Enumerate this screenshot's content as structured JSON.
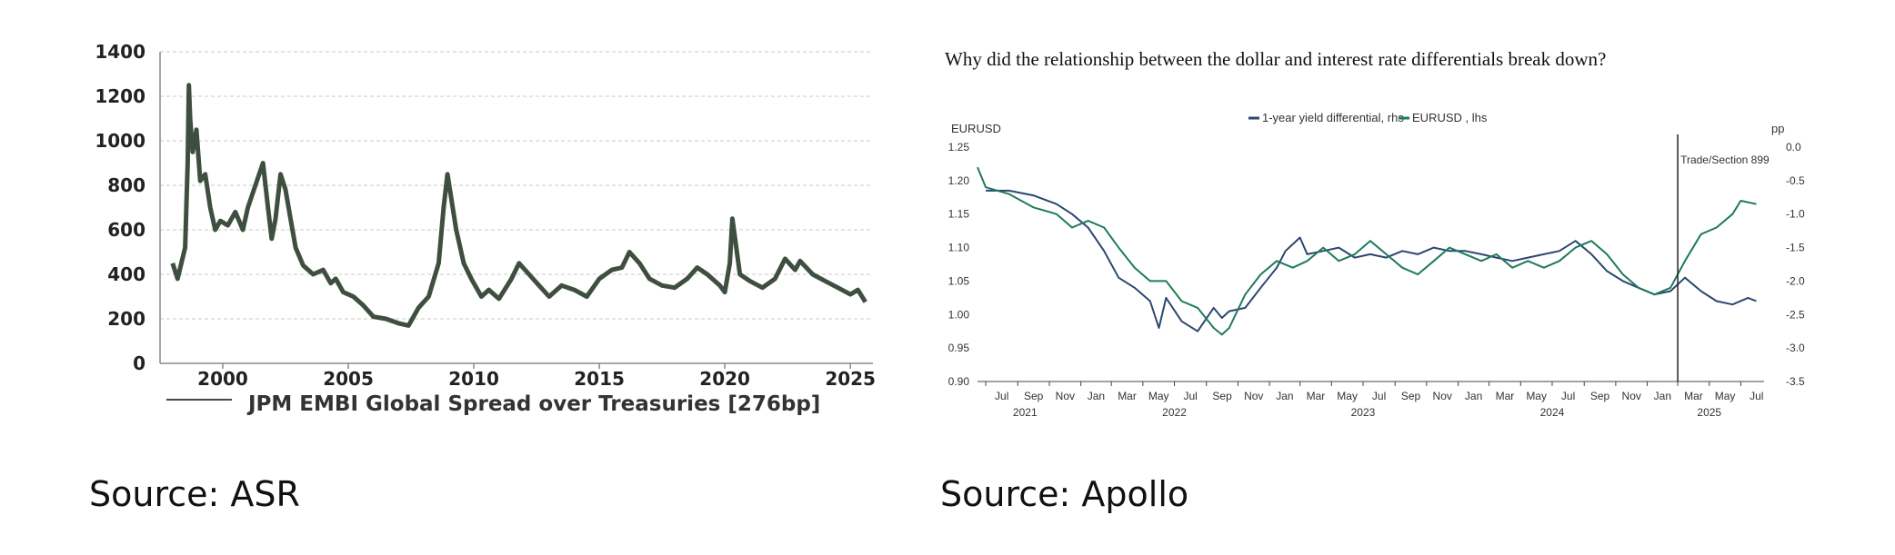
{
  "chart_data": [
    {
      "type": "line",
      "title": "",
      "xlabel": "",
      "ylabel": "",
      "xlim": [
        1997.5,
        2025.9
      ],
      "ylim": [
        0,
        1400
      ],
      "y_ticks": [
        "0",
        "200",
        "400",
        "600",
        "800",
        "1000",
        "1200",
        "1400"
      ],
      "x_ticks": [
        "2000",
        "2005",
        "2010",
        "2015",
        "2020",
        "2025"
      ],
      "grid": "horizontal dashed",
      "legend": "bottom",
      "colors": {
        "series": "#3f4f3f",
        "grid": "#c8c8c8"
      },
      "series": [
        {
          "name": "JPM EMBI Global Spread over Treasuries [276bp]",
          "x": [
            1998.0,
            1998.2,
            1998.5,
            1998.6,
            1998.65,
            1998.7,
            1998.8,
            1998.95,
            1999.1,
            1999.3,
            1999.5,
            1999.7,
            1999.9,
            2000.2,
            2000.5,
            2000.8,
            2001.0,
            2001.3,
            2001.6,
            2001.8,
            2001.95,
            2002.1,
            2002.3,
            2002.5,
            2002.7,
            2002.9,
            2003.2,
            2003.6,
            2004.0,
            2004.3,
            2004.5,
            2004.8,
            2005.2,
            2005.6,
            2006.0,
            2006.5,
            2007.0,
            2007.4,
            2007.8,
            2008.2,
            2008.6,
            2008.8,
            2008.95,
            2009.3,
            2009.6,
            2009.9,
            2010.3,
            2010.6,
            2011.0,
            2011.5,
            2011.8,
            2012.2,
            2012.6,
            2013.0,
            2013.5,
            2014.0,
            2014.5,
            2015.0,
            2015.5,
            2015.9,
            2016.2,
            2016.6,
            2017.0,
            2017.5,
            2018.0,
            2018.5,
            2018.9,
            2019.3,
            2019.8,
            2020.0,
            2020.2,
            2020.3,
            2020.6,
            2021.0,
            2021.5,
            2022.0,
            2022.4,
            2022.8,
            2023.0,
            2023.5,
            2024.0,
            2024.5,
            2025.0,
            2025.3,
            2025.6
          ],
          "values": [
            450,
            380,
            520,
            900,
            1250,
            1100,
            950,
            1050,
            820,
            850,
            700,
            600,
            640,
            620,
            680,
            600,
            700,
            800,
            900,
            700,
            560,
            650,
            850,
            780,
            650,
            520,
            440,
            400,
            420,
            360,
            380,
            320,
            300,
            260,
            210,
            200,
            180,
            170,
            250,
            300,
            450,
            700,
            850,
            600,
            450,
            380,
            300,
            330,
            290,
            380,
            450,
            400,
            350,
            300,
            350,
            330,
            300,
            380,
            420,
            430,
            500,
            450,
            380,
            350,
            340,
            380,
            430,
            400,
            350,
            320,
            450,
            650,
            400,
            370,
            340,
            380,
            470,
            420,
            460,
            400,
            370,
            340,
            310,
            330,
            276
          ]
        }
      ]
    },
    {
      "type": "line",
      "title": "Why did the relationship between the dollar and interest rate differentials break down?",
      "xlabel": "",
      "ylabel": "EURUSD",
      "y2label": "pp",
      "xlim": [
        "2021-06-15",
        "2025-08-15"
      ],
      "ylim": [
        0.9,
        1.25
      ],
      "y2lim": [
        -3.5,
        0.0
      ],
      "y_ticks": [
        "0.90",
        "0.95",
        "1.00",
        "1.05",
        "1.10",
        "1.15",
        "1.20",
        "1.25"
      ],
      "y2_ticks": [
        "-3.5",
        "-3.0",
        "-2.5",
        "-2.0",
        "-1.5",
        "-1.0",
        "-0.5",
        "0.0"
      ],
      "x_month_ticks": [
        "Jul",
        "Sep",
        "Nov",
        "Jan",
        "Mar",
        "May",
        "Jul",
        "Sep",
        "Nov",
        "Jan",
        "Mar",
        "May",
        "Jul",
        "Sep",
        "Nov",
        "Jan",
        "Mar",
        "May",
        "Jul",
        "Sep",
        "Nov",
        "Jan",
        "Mar",
        "May",
        "Jul"
      ],
      "x_year_labels": [
        "2021",
        "2022",
        "2023",
        "2024",
        "2025"
      ],
      "annotation": {
        "date": "2025-03-01",
        "label": "Trade/Section 899"
      },
      "legend": "top-center",
      "colors": {
        "yield": "#2c4770",
        "eurusd": "#1f7a5c"
      },
      "series": [
        {
          "name": "1-year yield differential, rhs",
          "axis": "right",
          "x": [
            "2021-07-01",
            "2021-08-15",
            "2021-10-01",
            "2021-11-15",
            "2021-12-15",
            "2022-01-15",
            "2022-02-15",
            "2022-03-15",
            "2022-04-15",
            "2022-05-15",
            "2022-06-01",
            "2022-06-15",
            "2022-07-15",
            "2022-08-15",
            "2022-09-15",
            "2022-10-01",
            "2022-10-15",
            "2022-11-15",
            "2022-12-15",
            "2023-01-15",
            "2023-02-01",
            "2023-03-01",
            "2023-03-15",
            "2023-04-15",
            "2023-05-15",
            "2023-06-15",
            "2023-07-15",
            "2023-08-15",
            "2023-09-15",
            "2023-10-15",
            "2023-11-15",
            "2023-12-15",
            "2024-01-15",
            "2024-02-15",
            "2024-03-15",
            "2024-04-15",
            "2024-05-15",
            "2024-06-15",
            "2024-07-15",
            "2024-08-15",
            "2024-09-15",
            "2024-10-15",
            "2024-11-15",
            "2024-12-15",
            "2025-01-15",
            "2025-02-15",
            "2025-03-15",
            "2025-04-15",
            "2025-05-15",
            "2025-06-15",
            "2025-07-15",
            "2025-07-31"
          ],
          "values": [
            -0.65,
            -0.65,
            -0.72,
            -0.85,
            -1.0,
            -1.2,
            -1.55,
            -1.95,
            -2.1,
            -2.3,
            -2.7,
            -2.25,
            -2.6,
            -2.75,
            -2.4,
            -2.55,
            -2.45,
            -2.4,
            -2.1,
            -1.8,
            -1.55,
            -1.35,
            -1.6,
            -1.55,
            -1.5,
            -1.65,
            -1.6,
            -1.65,
            -1.55,
            -1.6,
            -1.5,
            -1.55,
            -1.55,
            -1.6,
            -1.65,
            -1.7,
            -1.65,
            -1.6,
            -1.55,
            -1.4,
            -1.6,
            -1.85,
            -2.0,
            -2.1,
            -2.2,
            -2.15,
            -1.95,
            -2.15,
            -2.3,
            -2.35,
            -2.25,
            -2.3
          ]
        },
        {
          "name": "EURUSD , lhs",
          "axis": "left",
          "x": [
            "2021-06-15",
            "2021-07-01",
            "2021-08-15",
            "2021-10-01",
            "2021-11-15",
            "2021-12-15",
            "2022-01-15",
            "2022-02-15",
            "2022-03-15",
            "2022-04-15",
            "2022-05-15",
            "2022-06-15",
            "2022-07-15",
            "2022-08-15",
            "2022-09-15",
            "2022-10-01",
            "2022-10-15",
            "2022-11-15",
            "2022-12-15",
            "2023-01-15",
            "2023-02-15",
            "2023-03-15",
            "2023-04-15",
            "2023-05-15",
            "2023-06-15",
            "2023-07-15",
            "2023-08-15",
            "2023-09-15",
            "2023-10-15",
            "2023-11-15",
            "2023-12-15",
            "2024-01-15",
            "2024-02-15",
            "2024-03-15",
            "2024-04-15",
            "2024-05-15",
            "2024-06-15",
            "2024-07-15",
            "2024-08-15",
            "2024-09-15",
            "2024-10-15",
            "2024-11-15",
            "2024-12-15",
            "2025-01-15",
            "2025-02-15",
            "2025-03-15",
            "2025-04-15",
            "2025-05-15",
            "2025-06-15",
            "2025-07-01",
            "2025-07-31"
          ],
          "values": [
            1.22,
            1.19,
            1.18,
            1.16,
            1.15,
            1.13,
            1.14,
            1.13,
            1.1,
            1.07,
            1.05,
            1.05,
            1.02,
            1.01,
            0.98,
            0.97,
            0.98,
            1.03,
            1.06,
            1.08,
            1.07,
            1.08,
            1.1,
            1.08,
            1.09,
            1.11,
            1.09,
            1.07,
            1.06,
            1.08,
            1.1,
            1.09,
            1.08,
            1.09,
            1.07,
            1.08,
            1.07,
            1.08,
            1.1,
            1.11,
            1.09,
            1.06,
            1.04,
            1.03,
            1.04,
            1.08,
            1.12,
            1.13,
            1.15,
            1.17,
            1.165
          ]
        }
      ]
    }
  ],
  "sources": {
    "left": "Source: ASR",
    "right": "Source: Apollo"
  }
}
